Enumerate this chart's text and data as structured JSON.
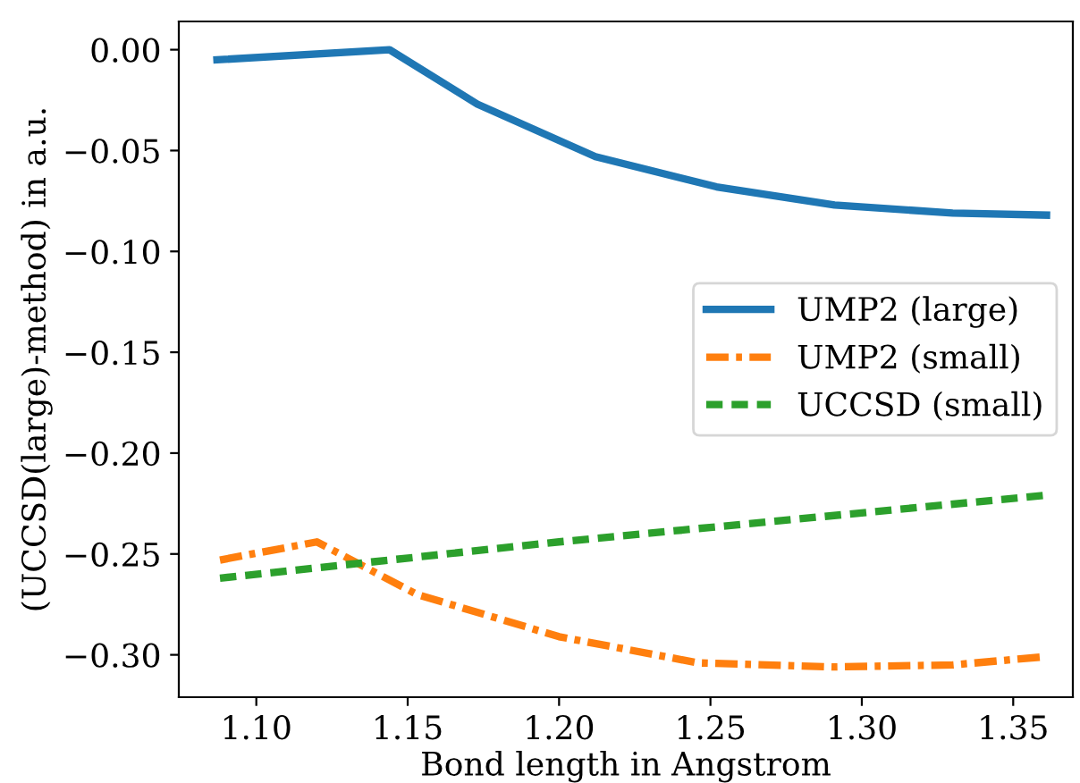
{
  "chart_data": {
    "type": "line",
    "xlabel": "Bond length in Angstrom",
    "ylabel": "(UCCSD(large)-method) in a.u.",
    "xlim": [
      1.0744,
      1.3697
    ],
    "ylim": [
      -0.321,
      0.014
    ],
    "xticks": [
      {
        "value": 1.1,
        "label": "1.10"
      },
      {
        "value": 1.15,
        "label": "1.15"
      },
      {
        "value": 1.2,
        "label": "1.20"
      },
      {
        "value": 1.25,
        "label": "1.25"
      },
      {
        "value": 1.3,
        "label": "1.30"
      },
      {
        "value": 1.35,
        "label": "1.35"
      }
    ],
    "yticks": [
      {
        "value": 0,
        "label": "0.00"
      },
      {
        "value": -0.05,
        "label": "−0.05"
      },
      {
        "value": -0.1,
        "label": "−0.10"
      },
      {
        "value": -0.15,
        "label": "−0.15"
      },
      {
        "value": -0.2,
        "label": "−0.20"
      },
      {
        "value": -0.25,
        "label": "−0.25"
      },
      {
        "value": -0.3,
        "label": "−0.30"
      }
    ],
    "grid": false,
    "legend": "right",
    "marker": "none",
    "series": [
      {
        "name": "UMP2 (large)",
        "color": "#1f77b4",
        "line_style": "solid",
        "x": [
          1.087,
          1.144,
          1.173,
          1.212,
          1.252,
          1.291,
          1.33,
          1.361
        ],
        "values": [
          -0.005,
          0.0,
          -0.027,
          -0.053,
          -0.068,
          -0.077,
          -0.081,
          -0.082
        ]
      },
      {
        "name": "UMP2 (small)",
        "color": "#ff7f0e",
        "line_style": "dashdot",
        "x": [
          1.088,
          1.12,
          1.153,
          1.2,
          1.246,
          1.291,
          1.33,
          1.36
        ],
        "values": [
          -0.253,
          -0.244,
          -0.27,
          -0.291,
          -0.304,
          -0.306,
          -0.305,
          -0.301
        ]
      },
      {
        "name": "UCCSD (small)",
        "color": "#2ca02c",
        "line_style": "dashed",
        "x": [
          1.088,
          1.2,
          1.36
        ],
        "values": [
          -0.262,
          -0.244,
          -0.221
        ]
      }
    ]
  }
}
